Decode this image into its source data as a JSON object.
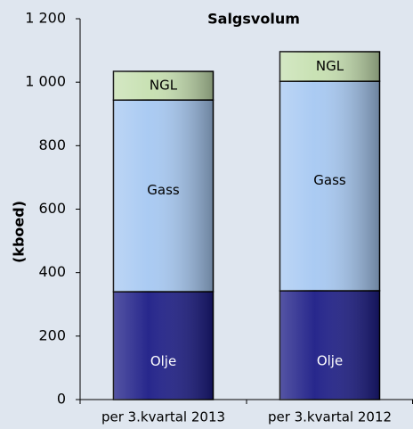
{
  "chart_data": {
    "type": "stacked_bar",
    "title": "Salgsvolum",
    "y_label": "(kboed)",
    "categories": [
      "per 3.kvartal 2013",
      "per 3.kvartal 2012"
    ],
    "series": [
      {
        "name": "Olje",
        "color": "#1c1c86",
        "values": [
          340,
          343
        ]
      },
      {
        "name": "Gass",
        "color": "#a6c8f2",
        "values": [
          604,
          660
        ]
      },
      {
        "name": "NGL",
        "color": "#c6e0b0",
        "values": [
          90,
          93
        ]
      }
    ],
    "ylim": [
      0,
      1200
    ],
    "yticks": [
      0,
      200,
      400,
      600,
      800,
      {
        "value": 1000,
        "label": "1 000"
      },
      {
        "value": 1200,
        "label": "1 200"
      }
    ]
  }
}
